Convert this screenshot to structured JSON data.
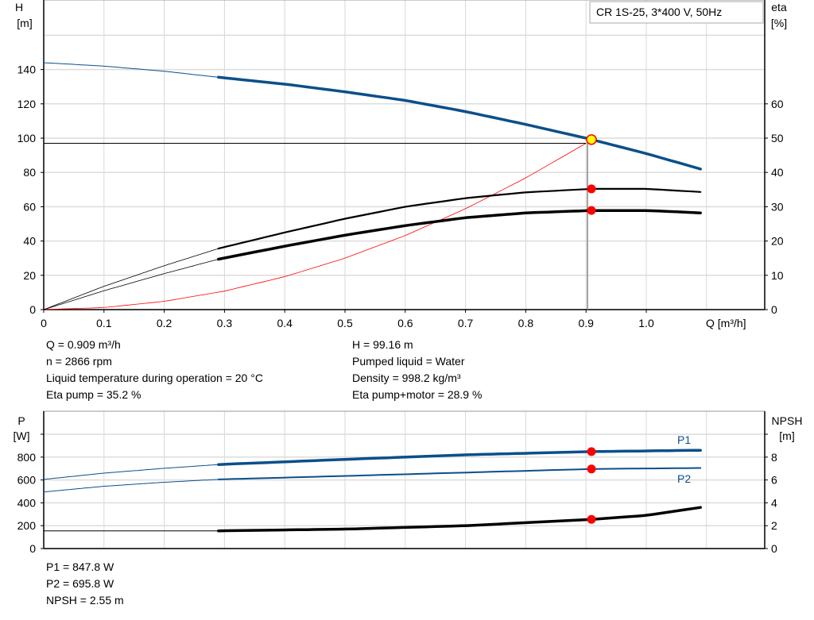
{
  "chart_data": [
    {
      "type": "line",
      "title": "CR 1S-25, 3*400 V, 50Hz",
      "xlabel": "Q [m³/h]",
      "ylabel_left": [
        "H",
        "[m]"
      ],
      "ylabel_right": [
        "eta",
        "[%]"
      ],
      "xlim": [
        0,
        1.2
      ],
      "ylim_left": [
        0,
        180
      ],
      "ylim_right": [
        0,
        90
      ],
      "grid": true,
      "x_ticks": [
        "0",
        "0.1",
        "0.2",
        "0.3",
        "0.4",
        "0.5",
        "0.6",
        "0.7",
        "0.8",
        "0.9",
        "1.0"
      ],
      "y_ticks_left": [
        "0",
        "20",
        "40",
        "60",
        "80",
        "100",
        "120",
        "140"
      ],
      "y_ticks_right": [
        "0",
        "10",
        "20",
        "30",
        "40",
        "50",
        "60"
      ],
      "colors": {
        "head": "#0b4f8a",
        "eta": "#000000",
        "system": "#ff0000",
        "point": "#ff0000",
        "duty_point": "#ffff00"
      },
      "series": [
        {
          "id": "head",
          "axis": "left",
          "x": [
            0,
            0.1,
            0.2,
            0.29,
            0.4,
            0.5,
            0.6,
            0.7,
            0.8,
            0.9,
            1.0,
            1.09
          ],
          "y": [
            144,
            142,
            139,
            135.5,
            131.5,
            127,
            122,
            115.5,
            108,
            100,
            91,
            82
          ]
        },
        {
          "id": "eta_pump",
          "axis": "right",
          "x": [
            0,
            0.1,
            0.2,
            0.29,
            0.4,
            0.5,
            0.6,
            0.7,
            0.8,
            0.909,
            1.0,
            1.09
          ],
          "y": [
            0,
            6.8,
            12.8,
            17.8,
            22.5,
            26.5,
            30,
            32.5,
            34.2,
            35.2,
            35.2,
            34.3
          ]
        },
        {
          "id": "eta_pump_motor",
          "axis": "right",
          "x": [
            0,
            0.1,
            0.2,
            0.29,
            0.4,
            0.5,
            0.6,
            0.7,
            0.8,
            0.909,
            1.0,
            1.09
          ],
          "y": [
            0,
            5.5,
            10.5,
            14.7,
            18.5,
            21.7,
            24.5,
            26.8,
            28.2,
            28.9,
            28.9,
            28.2
          ]
        },
        {
          "id": "system",
          "axis": "left",
          "x": [
            0,
            0.1,
            0.2,
            0.3,
            0.4,
            0.5,
            0.6,
            0.7,
            0.8,
            0.9
          ],
          "y": [
            0,
            1.2,
            4.8,
            10.8,
            19.2,
            30,
            43.2,
            58.8,
            76.8,
            97
          ]
        }
      ],
      "duty_point": {
        "q": 0.909,
        "h": 99.16,
        "eta_pump": 35.2,
        "eta_total": 28.9,
        "h_line": 97
      }
    },
    {
      "type": "line",
      "ylabel_left": [
        "P",
        "[W]"
      ],
      "ylabel_right": [
        "NPSH",
        "[m]"
      ],
      "xlim": [
        0,
        1.2
      ],
      "ylim_left": [
        0,
        1200
      ],
      "ylim_right": [
        0,
        12
      ],
      "grid": true,
      "y_ticks_left": [
        "0",
        "200",
        "400",
        "600",
        "800"
      ],
      "y_ticks_right": [
        "0",
        "2",
        "4",
        "6",
        "8"
      ],
      "series": [
        {
          "id": "P1",
          "name": "P1",
          "axis": "left",
          "x": [
            0,
            0.1,
            0.2,
            0.29,
            0.5,
            0.7,
            0.909,
            1.09
          ],
          "y": [
            605,
            660,
            702,
            735,
            780,
            820,
            848,
            860
          ]
        },
        {
          "id": "P2",
          "name": "P2",
          "axis": "left",
          "x": [
            0,
            0.1,
            0.2,
            0.29,
            0.5,
            0.7,
            0.909,
            1.09
          ],
          "y": [
            495,
            545,
            580,
            605,
            635,
            665,
            696,
            705
          ]
        },
        {
          "id": "NPSH",
          "axis": "right",
          "x": [
            0,
            0.29,
            0.5,
            0.7,
            0.909,
            1.0,
            1.09
          ],
          "y": [
            1.55,
            1.55,
            1.7,
            2.0,
            2.55,
            2.9,
            3.6
          ]
        }
      ],
      "duty_point": {
        "q": 0.909,
        "p1": 847.8,
        "p2": 695.8,
        "npsh": 2.55
      }
    }
  ],
  "readout": {
    "q": "Q = 0.909 m³/h",
    "n": "n = 2866 rpm",
    "temp": "Liquid temperature during operation = 20 °C",
    "eta_pump": "Eta pump = 35.2 %",
    "h": "H = 99.16 m",
    "liquid": "Pumped liquid = Water",
    "density": "Density = 998.2 kg/m³",
    "eta_total": "Eta pump+motor = 28.9 %",
    "p1": "P1 = 847.8 W",
    "p2": "P2 = 695.8 W",
    "npsh": "NPSH = 2.55 m"
  }
}
